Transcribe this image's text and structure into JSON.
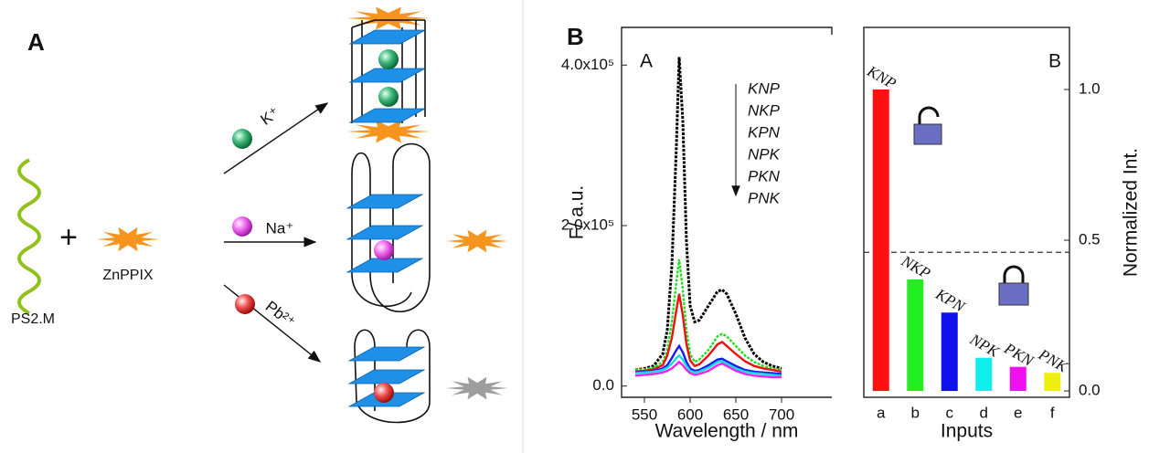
{
  "panel_a": {
    "label": "A",
    "strand": "PS2.M",
    "plus": "+",
    "porphyrin": "ZnPPIX",
    "ions": [
      "K⁺",
      "Na⁺",
      "Pb²⁺"
    ]
  },
  "panel_b_label": "B",
  "chart_data": [
    {
      "type": "line",
      "panel_label": "A",
      "x_label": "Wavelength / nm",
      "y_label": "F/ a.u.",
      "x": [
        540,
        550,
        560,
        570,
        575,
        580,
        585,
        588,
        592,
        596,
        600,
        605,
        610,
        620,
        630,
        635,
        640,
        650,
        660,
        670,
        680,
        690,
        700
      ],
      "series": [
        {
          "name": "KNP",
          "color": "#000000",
          "values": [
            20000,
            22000,
            25000,
            40000,
            70000,
            150000,
            300000,
            410000,
            330000,
            180000,
            100000,
            80000,
            82000,
            100000,
            118000,
            120000,
            115000,
            90000,
            60000,
            40000,
            30000,
            25000,
            22000
          ]
        },
        {
          "name": "NKP",
          "color": "#22dd22",
          "values": [
            20000,
            21000,
            23000,
            30000,
            45000,
            80000,
            130000,
            158000,
            120000,
            70000,
            40000,
            30000,
            33000,
            45000,
            62000,
            65000,
            62000,
            50000,
            38000,
            30000,
            25000,
            22000,
            20000
          ]
        },
        {
          "name": "KPN",
          "color": "#ee1111",
          "values": [
            18000,
            19000,
            21000,
            26000,
            38000,
            60000,
            95000,
            115000,
            88000,
            52000,
            32000,
            25000,
            27000,
            38000,
            52000,
            55000,
            50000,
            40000,
            31000,
            25000,
            22000,
            20000,
            18000
          ]
        },
        {
          "name": "NPK",
          "color": "#1a1aee",
          "values": [
            17000,
            18000,
            19000,
            22000,
            26000,
            35000,
            45000,
            50000,
            42000,
            30000,
            22000,
            19000,
            20000,
            26000,
            33000,
            34000,
            31000,
            25000,
            20000,
            18000,
            17000,
            16000,
            15000
          ]
        },
        {
          "name": "PKN",
          "color": "#11dddd",
          "values": [
            16000,
            17000,
            18000,
            20000,
            23000,
            28000,
            35000,
            38000,
            33000,
            25000,
            19000,
            17000,
            18000,
            23000,
            30000,
            31000,
            28000,
            22000,
            18000,
            16000,
            15000,
            14000,
            13000
          ]
        },
        {
          "name": "PNK",
          "color": "#ee22ee",
          "values": [
            13000,
            14000,
            15000,
            17000,
            19000,
            22000,
            27000,
            30000,
            26000,
            20000,
            16000,
            14000,
            15000,
            19000,
            26000,
            28000,
            25000,
            19000,
            15000,
            13000,
            12000,
            11000,
            11000
          ]
        }
      ],
      "xlim": [
        525,
        755
      ],
      "ylim": [
        -14000,
        447000
      ],
      "xticks": [
        550,
        600,
        650,
        700
      ],
      "yticks": [
        {
          "value": 0,
          "label": "0.0"
        },
        {
          "value": 200000,
          "label": "2.0x10⁵"
        },
        {
          "value": 400000,
          "label": "4.0x10⁵"
        }
      ]
    },
    {
      "type": "bar",
      "panel_label": "B",
      "x_label": "Inputs",
      "y_label": "Normalized Int.",
      "categories": [
        "a",
        "b",
        "c",
        "d",
        "e",
        "f"
      ],
      "bar_labels": [
        "KNP",
        "NKP",
        "KPN",
        "NPK",
        "PKN",
        "PNK"
      ],
      "values": [
        1.0,
        0.37,
        0.26,
        0.11,
        0.08,
        0.06
      ],
      "colors": [
        "#ff1111",
        "#22ee22",
        "#1111ee",
        "#11eeee",
        "#ee11ee",
        "#eeee11"
      ],
      "threshold": 0.46,
      "ylim": [
        -0.021,
        1.206
      ],
      "yticks": [
        {
          "value": 0,
          "label": "0.0"
        },
        {
          "value": 0.5,
          "label": "0.5"
        },
        {
          "value": 1,
          "label": "1.0"
        }
      ]
    }
  ]
}
